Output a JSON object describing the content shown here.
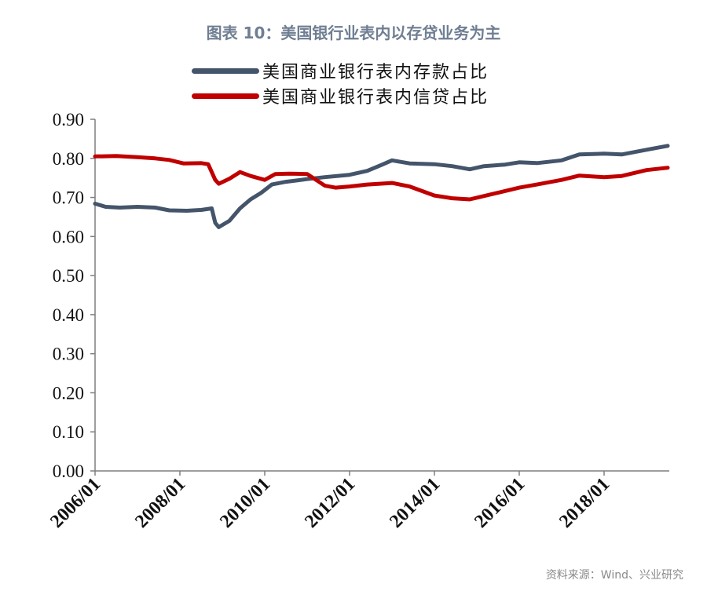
{
  "chart_data": {
    "type": "line",
    "title": "图表 10：美国银行业表内以存贷业务为主",
    "source": "资料来源：Wind、兴业研究",
    "xlabel": "",
    "ylabel": "",
    "ylim": [
      0,
      0.9
    ],
    "y_ticks": [
      "0.00",
      "0.10",
      "0.20",
      "0.30",
      "0.40",
      "0.50",
      "0.60",
      "0.70",
      "0.80",
      "0.90"
    ],
    "x_ticks": [
      "2006/01",
      "2008/01",
      "2010/01",
      "2012/01",
      "2014/01",
      "2016/01",
      "2018/01"
    ],
    "x_range": [
      "2006-01",
      "2019-07"
    ],
    "grid": false,
    "legend_position": "top",
    "series": [
      {
        "name": "美国商业银行表内存款占比",
        "color": "#44546a",
        "points": [
          [
            "2006-01",
            0.684
          ],
          [
            "2006-04",
            0.676
          ],
          [
            "2006-08",
            0.674
          ],
          [
            "2007-01",
            0.676
          ],
          [
            "2007-06",
            0.674
          ],
          [
            "2007-10",
            0.667
          ],
          [
            "2008-03",
            0.666
          ],
          [
            "2008-07",
            0.668
          ],
          [
            "2008-10",
            0.672
          ],
          [
            "2008-11",
            0.635
          ],
          [
            "2008-12",
            0.624
          ],
          [
            "2009-03",
            0.64
          ],
          [
            "2009-06",
            0.672
          ],
          [
            "2009-09",
            0.695
          ],
          [
            "2009-12",
            0.712
          ],
          [
            "2010-03",
            0.733
          ],
          [
            "2010-07",
            0.74
          ],
          [
            "2011-01",
            0.747
          ],
          [
            "2011-06",
            0.752
          ],
          [
            "2012-01",
            0.758
          ],
          [
            "2012-06",
            0.768
          ],
          [
            "2012-10",
            0.783
          ],
          [
            "2013-01",
            0.795
          ],
          [
            "2013-06",
            0.787
          ],
          [
            "2014-01",
            0.785
          ],
          [
            "2014-06",
            0.78
          ],
          [
            "2014-11",
            0.772
          ],
          [
            "2015-03",
            0.78
          ],
          [
            "2015-09",
            0.784
          ],
          [
            "2016-01",
            0.79
          ],
          [
            "2016-06",
            0.788
          ],
          [
            "2017-01",
            0.795
          ],
          [
            "2017-06",
            0.81
          ],
          [
            "2018-01",
            0.812
          ],
          [
            "2018-06",
            0.81
          ],
          [
            "2019-01",
            0.822
          ],
          [
            "2019-07",
            0.832
          ]
        ]
      },
      {
        "name": "美国商业银行表内信贷占比",
        "color": "#c00000",
        "points": [
          [
            "2006-01",
            0.805
          ],
          [
            "2006-07",
            0.806
          ],
          [
            "2007-01",
            0.803
          ],
          [
            "2007-06",
            0.8
          ],
          [
            "2007-10",
            0.796
          ],
          [
            "2008-02",
            0.787
          ],
          [
            "2008-07",
            0.788
          ],
          [
            "2008-09",
            0.785
          ],
          [
            "2008-11",
            0.745
          ],
          [
            "2008-12",
            0.735
          ],
          [
            "2009-03",
            0.748
          ],
          [
            "2009-06",
            0.765
          ],
          [
            "2009-09",
            0.755
          ],
          [
            "2010-01",
            0.745
          ],
          [
            "2010-04",
            0.76
          ],
          [
            "2010-08",
            0.761
          ],
          [
            "2011-01",
            0.76
          ],
          [
            "2011-06",
            0.73
          ],
          [
            "2011-09",
            0.725
          ],
          [
            "2012-01",
            0.728
          ],
          [
            "2012-06",
            0.733
          ],
          [
            "2013-01",
            0.737
          ],
          [
            "2013-06",
            0.728
          ],
          [
            "2014-01",
            0.705
          ],
          [
            "2014-06",
            0.698
          ],
          [
            "2014-11",
            0.695
          ],
          [
            "2015-06",
            0.71
          ],
          [
            "2016-01",
            0.725
          ],
          [
            "2016-06",
            0.733
          ],
          [
            "2017-01",
            0.745
          ],
          [
            "2017-06",
            0.756
          ],
          [
            "2018-01",
            0.752
          ],
          [
            "2018-06",
            0.755
          ],
          [
            "2019-01",
            0.77
          ],
          [
            "2019-07",
            0.776
          ]
        ]
      }
    ]
  }
}
